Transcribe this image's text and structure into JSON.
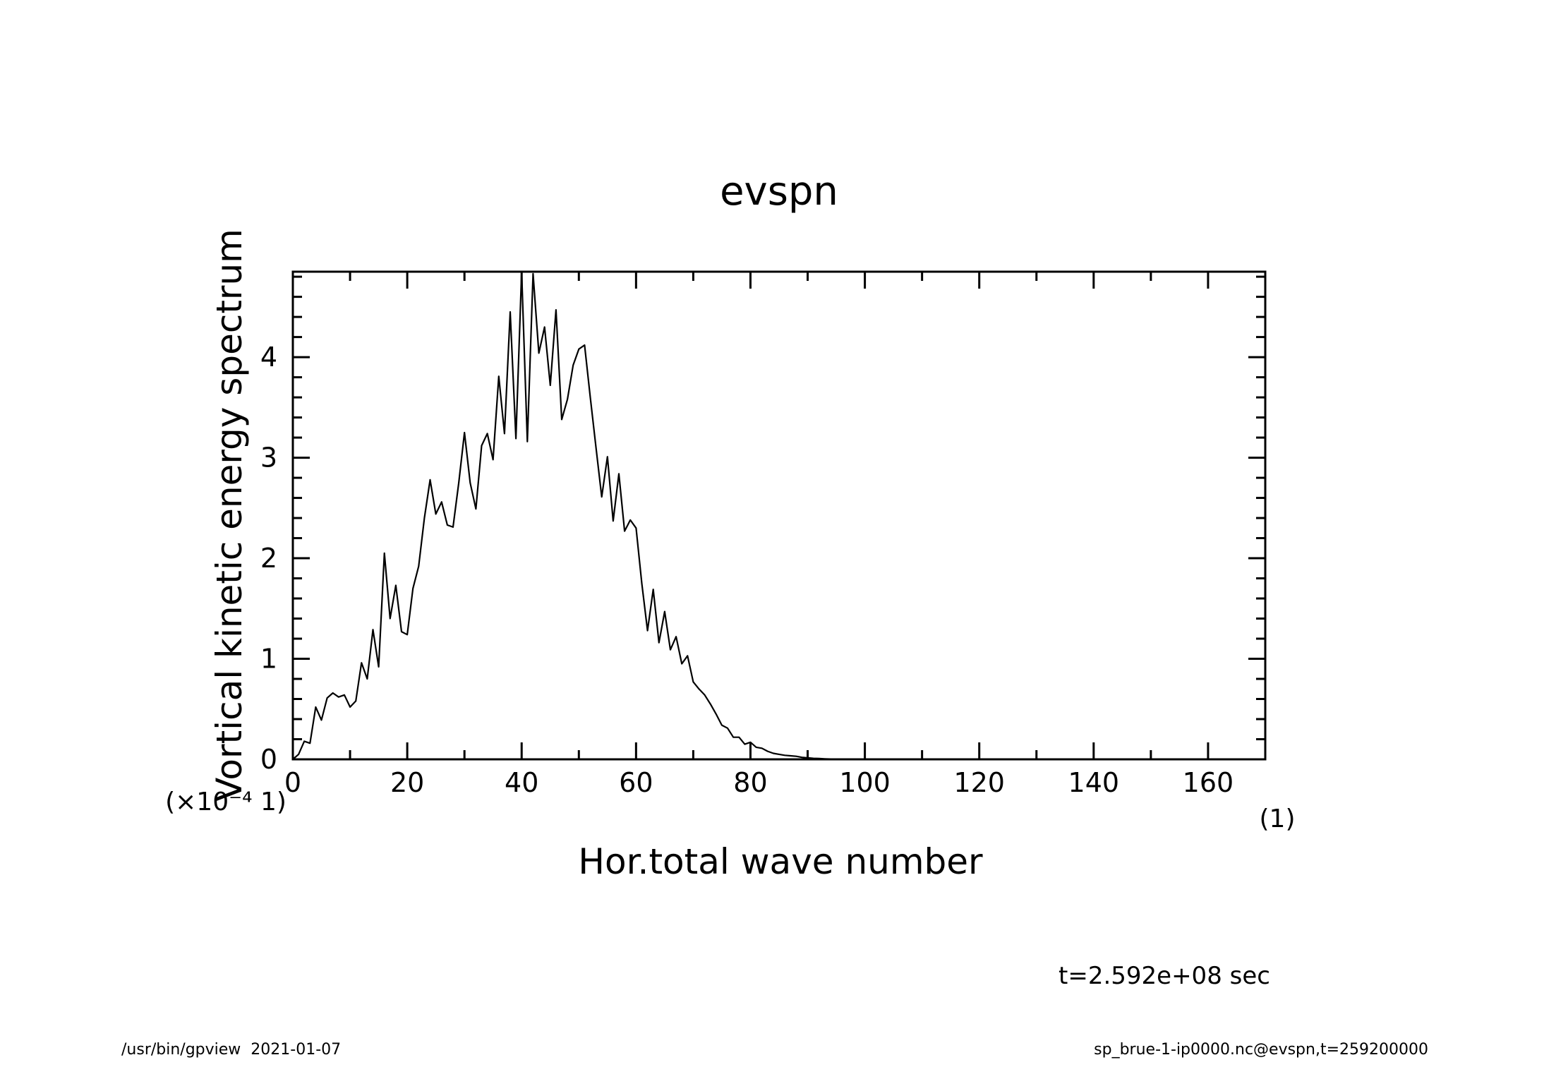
{
  "chart_data": {
    "type": "line",
    "title": "evspn",
    "xlabel": "Hor.total wave number",
    "ylabel": "Vortical kinetic energy spectrum",
    "x_unit": "(1)",
    "y_unit": "(×10⁻⁴ 1)",
    "xlim": [
      0,
      170
    ],
    "ylim": [
      0,
      4.85
    ],
    "x_ticks": [
      0,
      20,
      40,
      60,
      80,
      100,
      120,
      140,
      160
    ],
    "y_ticks": [
      0,
      1,
      2,
      3,
      4
    ],
    "x_tick_labels": [
      "0",
      "20",
      "40",
      "60",
      "80",
      "100",
      "120",
      "140",
      "160"
    ],
    "y_tick_labels": [
      "0",
      "1",
      "2",
      "3",
      "4"
    ],
    "grid": false,
    "series": [
      {
        "x": [
          0,
          1,
          2,
          3,
          4,
          5,
          6,
          7,
          8,
          9,
          10,
          11,
          12,
          13,
          14,
          15,
          16,
          17,
          18,
          19,
          20,
          21,
          22,
          23,
          24,
          25,
          26,
          27,
          28,
          29,
          30,
          31,
          32,
          33,
          34,
          35,
          36,
          37,
          38,
          39,
          40,
          41,
          42,
          43,
          44,
          45,
          46,
          47,
          48,
          49,
          50,
          51,
          52,
          53,
          54,
          55,
          56,
          57,
          58,
          59,
          60,
          61,
          62,
          63,
          64,
          65,
          66,
          67,
          68,
          69,
          70,
          71,
          72,
          73,
          74,
          75,
          76,
          77,
          78,
          79,
          80,
          81,
          82,
          83,
          84,
          85,
          86,
          87,
          88,
          89,
          90,
          91,
          92,
          93,
          94,
          95,
          96,
          97,
          98,
          99,
          100,
          110,
          120,
          130,
          140,
          150,
          160,
          170
        ],
        "y": [
          0.0,
          0.05,
          0.18,
          0.16,
          0.52,
          0.39,
          0.61,
          0.66,
          0.62,
          0.64,
          0.52,
          0.58,
          0.96,
          0.8,
          1.29,
          0.92,
          2.05,
          1.4,
          1.73,
          1.27,
          1.24,
          1.7,
          1.92,
          2.4,
          2.78,
          2.44,
          2.56,
          2.33,
          2.31,
          2.75,
          3.25,
          2.75,
          2.49,
          3.12,
          3.24,
          2.98,
          3.81,
          3.24,
          4.45,
          3.19,
          4.85,
          3.16,
          4.83,
          4.04,
          4.3,
          3.72,
          4.47,
          3.38,
          3.58,
          3.92,
          4.08,
          4.12,
          3.6,
          3.1,
          2.61,
          3.01,
          2.37,
          2.84,
          2.27,
          2.38,
          2.3,
          1.75,
          1.28,
          1.69,
          1.16,
          1.47,
          1.09,
          1.22,
          0.95,
          1.03,
          0.77,
          0.7,
          0.64,
          0.55,
          0.45,
          0.34,
          0.31,
          0.22,
          0.22,
          0.15,
          0.17,
          0.12,
          0.11,
          0.08,
          0.06,
          0.05,
          0.04,
          0.035,
          0.03,
          0.02,
          0.015,
          0.01,
          0.008,
          0.005,
          0.003,
          0.002,
          0.001,
          0.0,
          0.0,
          0.0,
          0.0,
          0.0,
          0.0,
          0.0,
          0.0,
          0.0,
          0.0,
          0.0
        ]
      }
    ]
  },
  "annotations": {
    "time": "t=2.592e+08 sec",
    "footer_left": "/usr/bin/gpview  2021-01-07",
    "footer_right": "sp_brue-1-ip0000.nc@evspn,t=259200000"
  }
}
